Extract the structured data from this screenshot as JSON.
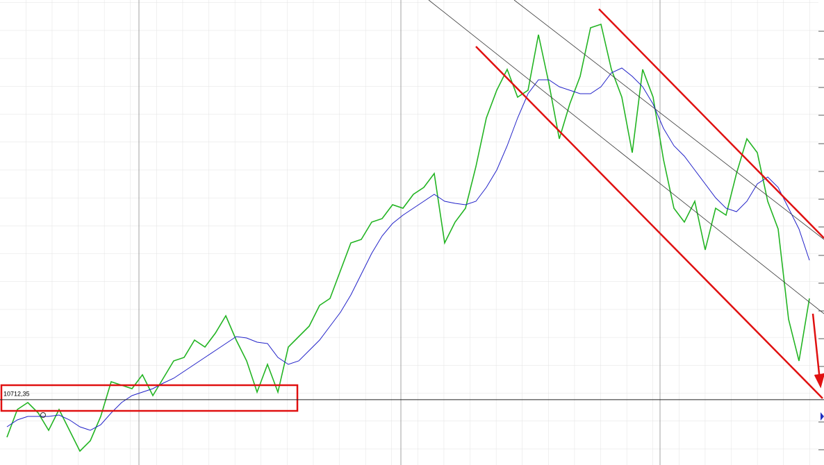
{
  "chart_data": {
    "type": "line",
    "ylim": [
      10242,
      13592
    ],
    "reference_line": {
      "value": 10712.35,
      "label": "10712,35"
    },
    "series": [
      {
        "color": "#22b422",
        "values": [
          10442,
          10642,
          10692,
          10617,
          10492,
          10642,
          10492,
          10342,
          10417,
          10592,
          10842,
          10817,
          10792,
          10892,
          10742,
          10867,
          10992,
          11017,
          11142,
          11092,
          11192,
          11317,
          11142,
          10992,
          10767,
          10967,
          10767,
          11092,
          11167,
          11242,
          11392,
          11442,
          11642,
          11842,
          11867,
          11992,
          12017,
          12117,
          12092,
          12192,
          12242,
          12342,
          11842,
          11992,
          12092,
          12392,
          12742,
          12942,
          13092,
          12892,
          12942,
          13342,
          12992,
          12592,
          12842,
          13042,
          13392,
          13417,
          13092,
          12892,
          12492,
          13092,
          12892,
          12442,
          12092,
          11992,
          12142,
          11792,
          12092,
          12042,
          12342,
          12592,
          12492,
          12142,
          11942,
          11292,
          10992,
          11442
        ]
      },
      {
        "color": "#2020c8",
        "values": [
          10517,
          10567,
          10592,
          10592,
          10592,
          10602,
          10567,
          10517,
          10492,
          10532,
          10617,
          10692,
          10742,
          10767,
          10792,
          10832,
          10867,
          10917,
          10967,
          11017,
          11067,
          11117,
          11167,
          11157,
          11127,
          11117,
          11017,
          10967,
          10992,
          11067,
          11142,
          11242,
          11342,
          11467,
          11617,
          11767,
          11892,
          11982,
          12042,
          12092,
          12142,
          12192,
          12142,
          12127,
          12117,
          12142,
          12242,
          12367,
          12542,
          12742,
          12917,
          13017,
          13017,
          12967,
          12942,
          12917,
          12917,
          12967,
          13067,
          13102,
          13042,
          12967,
          12842,
          12667,
          12542,
          12467,
          12367,
          12267,
          12167,
          12092,
          12067,
          12142,
          12267,
          12317,
          12242,
          12092,
          11942,
          11717
        ]
      }
    ]
  }
}
